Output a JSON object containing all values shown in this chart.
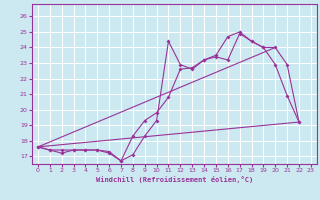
{
  "xlabel": "Windchill (Refroidissement éolien,°C)",
  "bg_color": "#cce8f0",
  "line_color": "#993399",
  "grid_color": "#ffffff",
  "xlim": [
    -0.5,
    23.5
  ],
  "ylim": [
    16.5,
    26.8
  ],
  "yticks": [
    17,
    18,
    19,
    20,
    21,
    22,
    23,
    24,
    25,
    26
  ],
  "xticks": [
    0,
    1,
    2,
    3,
    4,
    5,
    6,
    7,
    8,
    9,
    10,
    11,
    12,
    13,
    14,
    15,
    16,
    17,
    18,
    19,
    20,
    21,
    22,
    23
  ],
  "line1_x": [
    0,
    1,
    2,
    3,
    4,
    5,
    6,
    7,
    8,
    9,
    10,
    11,
    12,
    13,
    14,
    15,
    16,
    17,
    18,
    19,
    20,
    21,
    22
  ],
  "line1_y": [
    17.6,
    17.4,
    17.2,
    17.4,
    17.4,
    17.4,
    17.2,
    16.7,
    17.1,
    18.3,
    19.3,
    24.4,
    22.9,
    22.6,
    23.2,
    23.4,
    23.2,
    24.9,
    24.4,
    24.0,
    24.0,
    22.9,
    19.2
  ],
  "line2_x": [
    0,
    1,
    2,
    3,
    4,
    5,
    6,
    7,
    8,
    9,
    10,
    11,
    12,
    13,
    14,
    15,
    16,
    17,
    18,
    19,
    20,
    21,
    22
  ],
  "line2_y": [
    17.6,
    17.4,
    17.4,
    17.4,
    17.4,
    17.4,
    17.3,
    16.7,
    18.3,
    19.3,
    19.8,
    20.8,
    22.6,
    22.7,
    23.2,
    23.5,
    24.7,
    25.0,
    24.4,
    24.0,
    22.9,
    20.9,
    19.2
  ],
  "line3_x": [
    0,
    22
  ],
  "line3_y": [
    17.6,
    19.2
  ],
  "line4_x": [
    0,
    20
  ],
  "line4_y": [
    17.6,
    24.0
  ]
}
